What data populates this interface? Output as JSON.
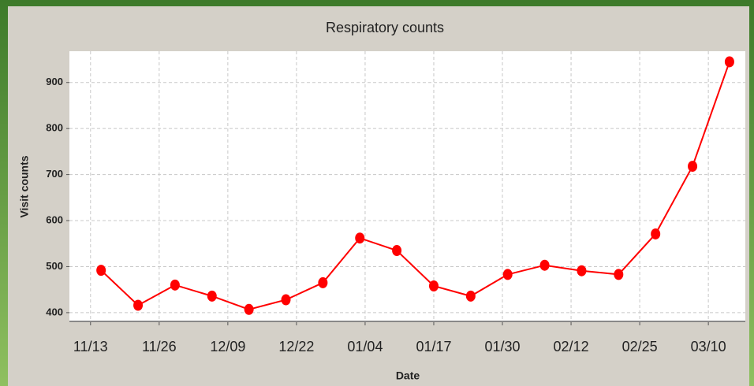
{
  "chart_data": {
    "type": "line",
    "title": "Respiratory counts",
    "x_label": "Date",
    "y_label": "Visit counts",
    "x": [
      "11/15",
      "11/22",
      "11/29",
      "12/06",
      "12/13",
      "12/20",
      "12/27",
      "01/03",
      "01/10",
      "01/17",
      "01/24",
      "01/31",
      "02/07",
      "02/14",
      "02/21",
      "02/28",
      "03/07",
      "03/14"
    ],
    "series": [
      {
        "name": "Respiratory",
        "color": "#ff0000",
        "values": [
          492,
          416,
          460,
          436,
          407,
          428,
          465,
          562,
          535,
          458,
          436,
          483,
          503,
          491,
          483,
          571,
          718,
          945
        ]
      }
    ],
    "xlim": [
      "11/09",
      "03/17"
    ],
    "xticks": [
      "11/13",
      "11/26",
      "12/09",
      "12/22",
      "01/04",
      "01/17",
      "01/30",
      "02/12",
      "02/25",
      "03/10"
    ],
    "ylim": [
      381,
      968
    ],
    "yticks": [
      400,
      500,
      600,
      700,
      800,
      900
    ],
    "grid": true
  }
}
